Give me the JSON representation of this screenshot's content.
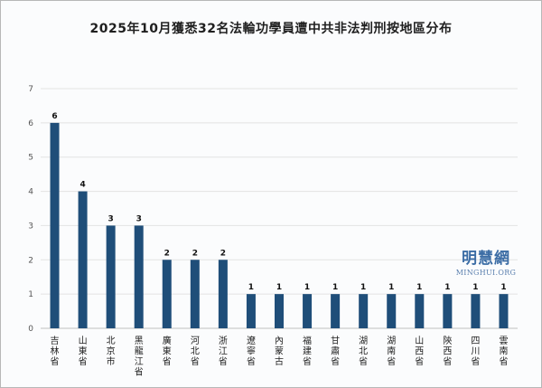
{
  "chart_data": {
    "type": "bar",
    "title": "2025年10月獲悉32名法輪功學員遭中共非法判刑按地區分布",
    "xlabel": "",
    "ylabel": "",
    "ylim": [
      0,
      7
    ],
    "yticks": [
      0,
      1,
      2,
      3,
      4,
      5,
      6,
      7
    ],
    "grid": true,
    "legend": "none",
    "bar_color": "#1f4e79",
    "categories": [
      "吉林省",
      "山東省",
      "北京市",
      "黑龍江省",
      "廣東省",
      "河北省",
      "浙江省",
      "遼寧省",
      "內蒙古",
      "福建省",
      "甘肅省",
      "湖北省",
      "湖南省",
      "山西省",
      "陝西省",
      "四川省",
      "雲南省"
    ],
    "values": [
      6,
      4,
      3,
      3,
      2,
      2,
      2,
      1,
      1,
      1,
      1,
      1,
      1,
      1,
      1,
      1,
      1
    ]
  },
  "watermark": {
    "text_cn": "明慧網",
    "text_en": "MINGHUI.ORG",
    "color": "#3c6da5"
  }
}
